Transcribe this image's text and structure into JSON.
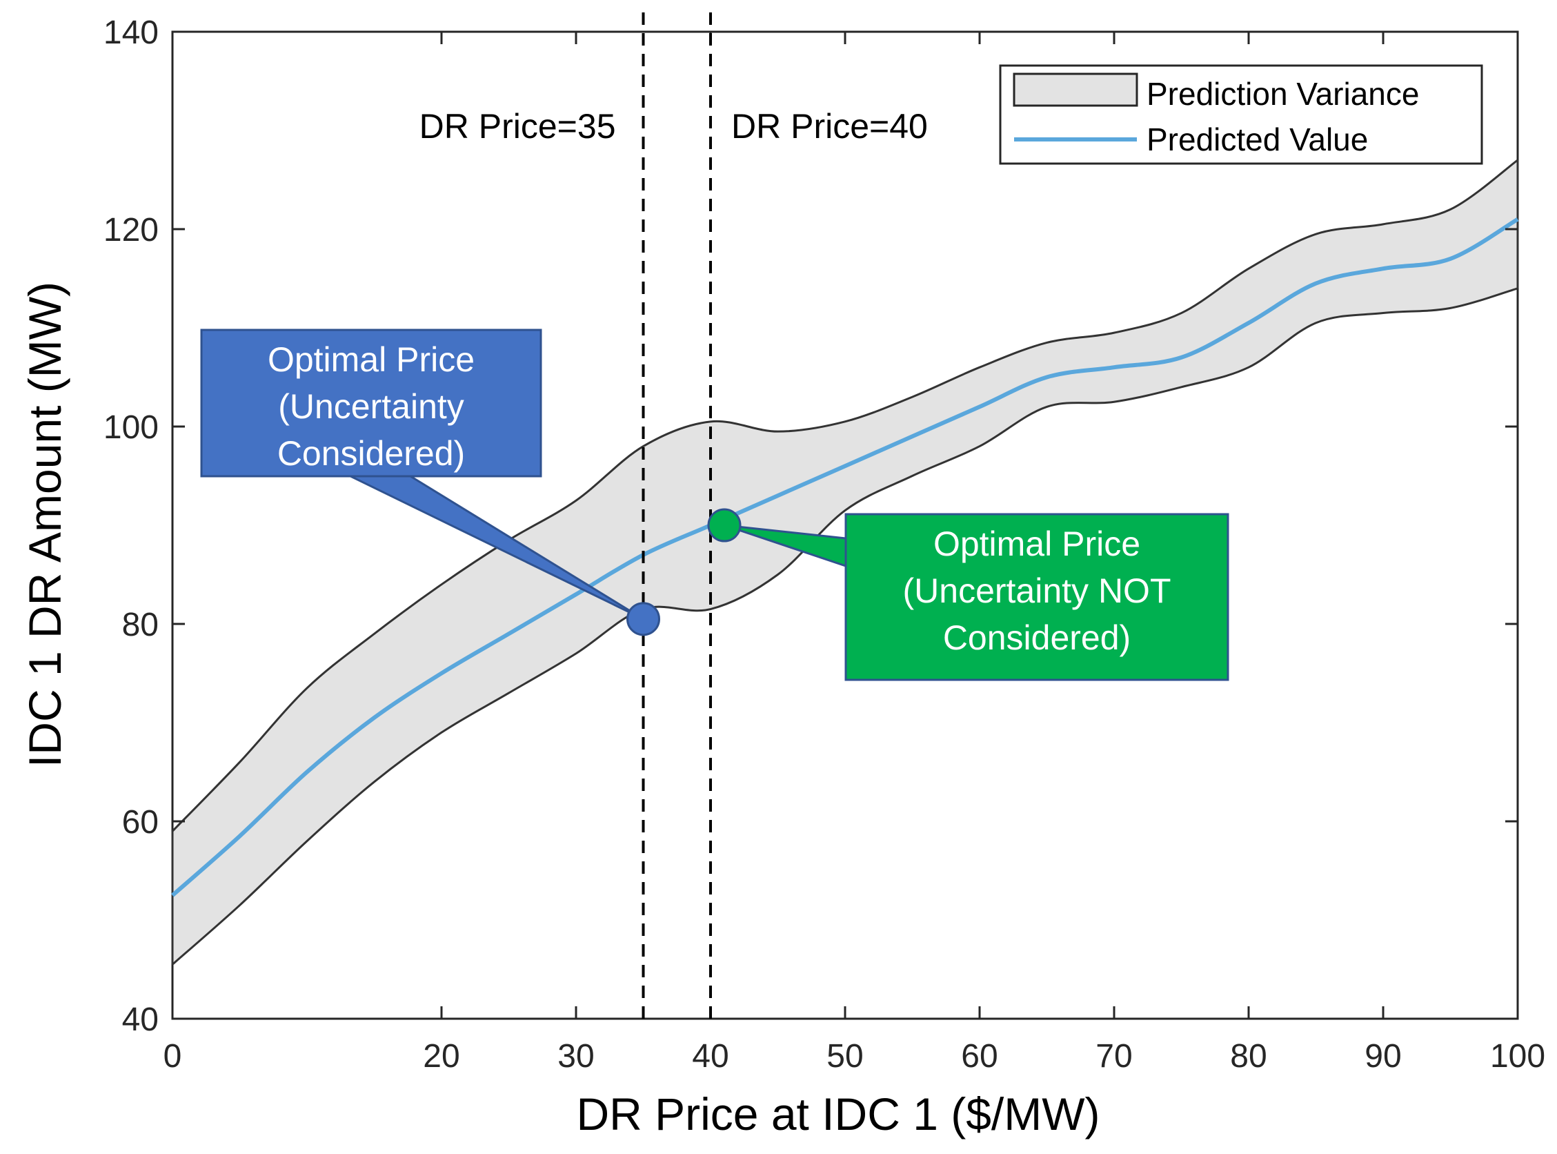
{
  "chart_data": {
    "type": "line",
    "title": "",
    "xlabel": "DR Price at IDC 1 ($/MW)",
    "ylabel": "IDC 1 DR Amount (MW)",
    "xlim": [
      0,
      100
    ],
    "ylim": [
      40,
      140
    ],
    "xticks": [
      0,
      20,
      30,
      40,
      50,
      60,
      70,
      80,
      90,
      100
    ],
    "yticks": [
      40,
      60,
      80,
      100,
      120,
      140
    ],
    "x": [
      0,
      5,
      10,
      15,
      20,
      25,
      30,
      35,
      40,
      45,
      50,
      55,
      60,
      65,
      70,
      75,
      80,
      85,
      90,
      95,
      100
    ],
    "series": [
      {
        "name": "Predicted Value",
        "color": "#5aa7dc",
        "values": [
          52.5,
          58.5,
          65,
          70.5,
          75,
          79,
          83,
          87,
          90,
          93,
          96,
          99,
          102,
          105,
          106,
          107,
          110.5,
          114.5,
          116,
          117,
          121
        ]
      },
      {
        "name": "Prediction Variance (upper)",
        "color": "#333333",
        "values": [
          59,
          66,
          73.5,
          79,
          84,
          88.5,
          92.5,
          98,
          100.5,
          99.5,
          100.5,
          103,
          106,
          108.5,
          109.5,
          111.5,
          116,
          119.5,
          120.5,
          122,
          127
        ]
      },
      {
        "name": "Prediction Variance (lower)",
        "color": "#333333",
        "values": [
          45.5,
          51.5,
          58,
          64,
          69,
          73,
          77,
          81.5,
          81.5,
          85,
          91.5,
          95,
          98,
          102,
          102.5,
          104,
          106,
          110.5,
          111.5,
          112,
          114
        ]
      }
    ],
    "legend": [
      {
        "label": "Prediction Variance",
        "style": "band",
        "fill": "#e3e3e3"
      },
      {
        "label": "Predicted Value",
        "style": "line",
        "color": "#5aa7dc"
      }
    ],
    "legend_position": "top-right",
    "vlines": [
      {
        "x": 35,
        "label": "DR Price=35"
      },
      {
        "x": 40,
        "label": "DR Price=40"
      }
    ],
    "annotations": [
      {
        "x": 35,
        "y": 80.5,
        "color": "#4472c4",
        "lines": [
          "Optimal Price",
          "(Uncertainty",
          "Considered)"
        ]
      },
      {
        "x": 40,
        "y": 90,
        "color": "#00b050",
        "lines": [
          "Optimal Price",
          "(Uncertainty NOT",
          "Considered)"
        ]
      }
    ],
    "grid": false
  }
}
